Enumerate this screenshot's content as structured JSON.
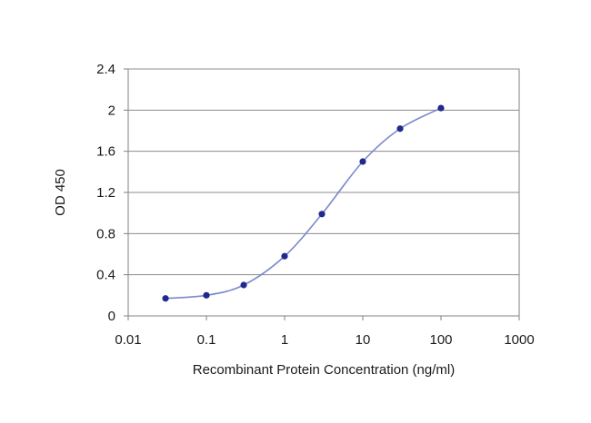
{
  "chart_data": {
    "type": "line",
    "xlabel": "Recombinant Protein Concentration (ng/ml)",
    "ylabel": "OD 450",
    "x_scale": "log",
    "xlim": [
      0.01,
      1000
    ],
    "ylim": [
      0,
      2.4
    ],
    "x_ticks": [
      "0.01",
      "0.1",
      "1",
      "10",
      "100",
      "1000"
    ],
    "y_ticks": [
      "0",
      "0.4",
      "0.8",
      "1.2",
      "1.6",
      "2",
      "2.4"
    ],
    "grid": "horizontal",
    "series": [
      {
        "x": [
          0.03,
          0.1,
          0.3,
          1,
          3,
          10,
          30,
          100
        ],
        "values": [
          0.17,
          0.2,
          0.3,
          0.58,
          0.99,
          1.5,
          1.82,
          2.02
        ]
      }
    ],
    "colors": {
      "line": "#7a88cc",
      "marker": "#1f2a8c"
    }
  }
}
